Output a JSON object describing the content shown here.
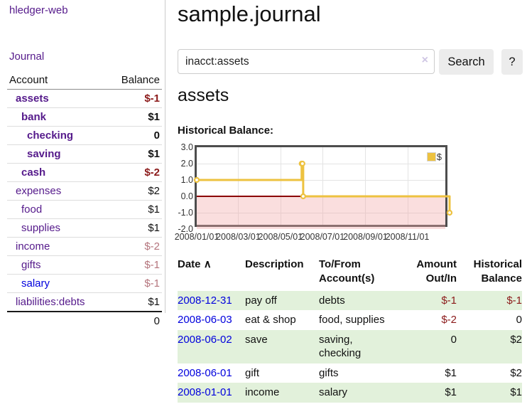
{
  "colors": {
    "purple_link": "#551a8b",
    "blue_link": "#0000dd",
    "negative_strong": "#8b1a1a",
    "negative_soft": "#b4747c",
    "row_green": "#e2f1db",
    "chart_line_gold": "#edc240",
    "chart_negative_fill": "#f6d4d4",
    "zero_line": "#8b0000",
    "button_bg": "#ececec"
  },
  "sidebar": {
    "app_title": "hledger-web",
    "journal_label": "Journal",
    "table": {
      "headers": {
        "account": "Account",
        "balance": "Balance"
      },
      "rows": [
        {
          "account": "assets",
          "balance": "$-1"
        },
        {
          "account": "bank",
          "balance": "$1"
        },
        {
          "account": "checking",
          "balance": "0"
        },
        {
          "account": "saving",
          "balance": "$1"
        },
        {
          "account": "cash",
          "balance": "$-2"
        },
        {
          "account": "expenses",
          "balance": "$2"
        },
        {
          "account": "food",
          "balance": "$1"
        },
        {
          "account": "supplies",
          "balance": "$1"
        },
        {
          "account": "income",
          "balance": "$-2"
        },
        {
          "account": "gifts",
          "balance": "$-1"
        },
        {
          "account": "salary",
          "balance": "$-1"
        },
        {
          "account": "liabilities:debts",
          "balance": "$1"
        }
      ],
      "total": "0"
    }
  },
  "header": {
    "title": "sample.journal"
  },
  "search": {
    "value": "inacct:assets",
    "clear_icon": "×",
    "button_label": "Search",
    "help_label": "?"
  },
  "account_page": {
    "title": "assets",
    "chart_label": "Historical Balance:"
  },
  "chart_data": {
    "type": "line",
    "title": "Historical Balance",
    "ylim": [
      -2,
      3
    ],
    "x_range": [
      "2008/01/01",
      "2008/12/31"
    ],
    "grid": true,
    "legend_position": "top-right",
    "yticks": [
      {
        "label": "3.0",
        "v": 3
      },
      {
        "label": "2.0",
        "v": 2
      },
      {
        "label": "1.0",
        "v": 1
      },
      {
        "label": "0.0",
        "v": 0
      },
      {
        "label": "-1.0",
        "v": -1
      },
      {
        "label": "-2.0",
        "v": -2
      }
    ],
    "xticks": [
      {
        "label": "2008/01/01",
        "f": 0.0
      },
      {
        "label": "2008/03/01",
        "f": 0.164
      },
      {
        "label": "2008/05/01",
        "f": 0.331
      },
      {
        "label": "2008/07/01",
        "f": 0.497
      },
      {
        "label": "2008/09/01",
        "f": 0.667
      },
      {
        "label": "2008/11/01",
        "f": 0.833
      }
    ],
    "series": [
      {
        "name": "$",
        "color": "#edc240",
        "style": "step",
        "points": [
          {
            "date": "2008-01-01",
            "f": 0.0,
            "value": 1
          },
          {
            "date": "2008-06-01",
            "f": 0.415,
            "value": 2
          },
          {
            "date": "2008-06-02",
            "f": 0.418,
            "value": 2
          },
          {
            "date": "2008-06-03",
            "f": 0.421,
            "value": 0
          },
          {
            "date": "2008-12-31",
            "f": 1.0,
            "value": -1
          }
        ]
      }
    ]
  },
  "register": {
    "headers": {
      "date": "Date",
      "description": "Description",
      "accounts": "To/From Account(s)",
      "amount": "Amount Out/In",
      "balance": "Historical Balance"
    },
    "sort_icon": "∧",
    "rows": [
      {
        "date": "2008-12-31",
        "description": "pay off",
        "accounts": "debts",
        "amount": "$-1",
        "balance": "$-1"
      },
      {
        "date": "2008-06-03",
        "description": "eat & shop",
        "accounts": "food, supplies",
        "amount": "$-2",
        "balance": "0"
      },
      {
        "date": "2008-06-02",
        "description": "save",
        "accounts": "saving, checking",
        "amount": "0",
        "balance": "$2"
      },
      {
        "date": "2008-06-01",
        "description": "gift",
        "accounts": "gifts",
        "amount": "$1",
        "balance": "$2"
      },
      {
        "date": "2008-01-01",
        "description": "income",
        "accounts": "salary",
        "amount": "$1",
        "balance": "$1"
      }
    ]
  }
}
